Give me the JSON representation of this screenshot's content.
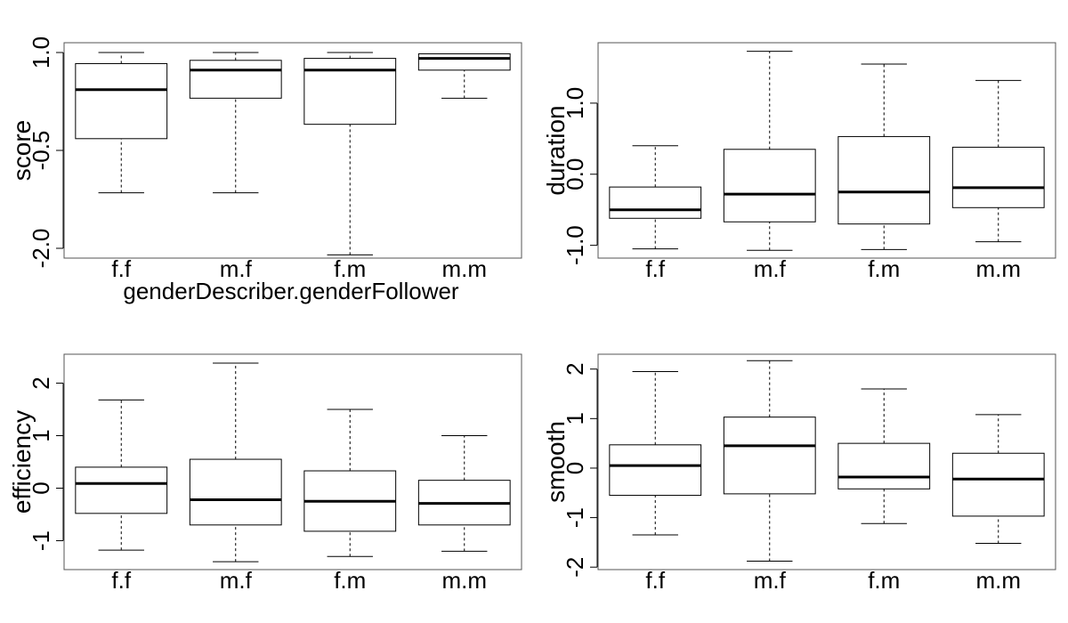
{
  "chart_data": [
    {
      "type": "boxplot",
      "ylabel": "score",
      "xlabel": "genderDescriber.genderFollower",
      "categories": [
        "f.f",
        "m.f",
        "f.m",
        "m.m"
      ],
      "yticks": [
        "-2.0",
        "-0.5",
        "1.0"
      ],
      "ylim": [
        -2.15,
        1.15
      ],
      "boxes": [
        {
          "whisker_low": -1.15,
          "q1": -0.32,
          "median": 0.43,
          "q3": 0.83,
          "whisker_high": 1.0
        },
        {
          "whisker_low": -1.15,
          "q1": 0.3,
          "median": 0.73,
          "q3": 0.88,
          "whisker_high": 1.0
        },
        {
          "whisker_low": -2.1,
          "q1": -0.1,
          "median": 0.73,
          "q3": 0.91,
          "whisker_high": 1.0
        },
        {
          "whisker_low": 0.3,
          "q1": 0.73,
          "median": 0.91,
          "q3": 0.98,
          "whisker_high": 0.98
        }
      ]
    },
    {
      "type": "boxplot",
      "ylabel": "duration",
      "xlabel": "",
      "categories": [
        "f.f",
        "m.f",
        "f.m",
        "m.m"
      ],
      "yticks": [
        "-1.0",
        "0.0",
        "1.0"
      ],
      "ylim": [
        -1.18,
        1.85
      ],
      "boxes": [
        {
          "whisker_low": -1.05,
          "q1": -0.62,
          "median": -0.5,
          "q3": -0.18,
          "whisker_high": 0.4
        },
        {
          "whisker_low": -1.07,
          "q1": -0.67,
          "median": -0.28,
          "q3": 0.35,
          "whisker_high": 1.73
        },
        {
          "whisker_low": -1.06,
          "q1": -0.7,
          "median": -0.25,
          "q3": 0.53,
          "whisker_high": 1.55
        },
        {
          "whisker_low": -0.95,
          "q1": -0.47,
          "median": -0.19,
          "q3": 0.38,
          "whisker_high": 1.32
        }
      ]
    },
    {
      "type": "boxplot",
      "ylabel": "efficiency",
      "xlabel": "",
      "categories": [
        "f.f",
        "m.f",
        "f.m",
        "m.m"
      ],
      "yticks": [
        "-1",
        "0",
        "1",
        "2"
      ],
      "ylim": [
        -1.55,
        2.55
      ],
      "boxes": [
        {
          "whisker_low": -1.18,
          "q1": -0.48,
          "median": 0.09,
          "q3": 0.4,
          "whisker_high": 1.68
        },
        {
          "whisker_low": -1.4,
          "q1": -0.7,
          "median": -0.22,
          "q3": 0.55,
          "whisker_high": 2.38
        },
        {
          "whisker_low": -1.3,
          "q1": -0.82,
          "median": -0.25,
          "q3": 0.33,
          "whisker_high": 1.5
        },
        {
          "whisker_low": -1.2,
          "q1": -0.7,
          "median": -0.29,
          "q3": 0.15,
          "whisker_high": 1.0
        }
      ]
    },
    {
      "type": "boxplot",
      "ylabel": "smooth",
      "xlabel": "",
      "categories": [
        "f.f",
        "m.f",
        "f.m",
        "m.m"
      ],
      "yticks": [
        "-2",
        "-1",
        "0",
        "1",
        "2"
      ],
      "ylim": [
        -2.05,
        2.3
      ],
      "boxes": [
        {
          "whisker_low": -1.35,
          "q1": -0.55,
          "median": 0.05,
          "q3": 0.47,
          "whisker_high": 1.95
        },
        {
          "whisker_low": -1.88,
          "q1": -0.52,
          "median": 0.45,
          "q3": 1.03,
          "whisker_high": 2.17
        },
        {
          "whisker_low": -1.12,
          "q1": -0.42,
          "median": -0.18,
          "q3": 0.5,
          "whisker_high": 1.6
        },
        {
          "whisker_low": -1.52,
          "q1": -0.97,
          "median": -0.22,
          "q3": 0.3,
          "whisker_high": 1.08
        }
      ]
    }
  ]
}
